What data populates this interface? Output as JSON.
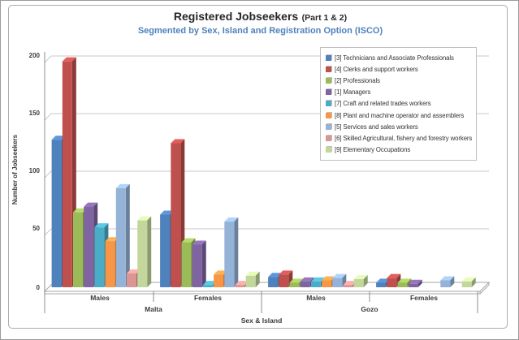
{
  "header": {
    "title_main": "Registered Jobseekers",
    "title_suffix": "(Part 1 & 2)",
    "subtitle": "Segmented by Sex, Island and Registration Option (ISCO)",
    "subtitle_color": "#4F81BD"
  },
  "chart_data": {
    "type": "bar",
    "view": "3d-clustered",
    "title": "Registered Jobseekers (Part 1 & 2)",
    "subtitle": "Segmented by Sex, Island and Registration Option (ISCO)",
    "xlabel": "Sex & Island",
    "ylabel": "Number of Jobseekers",
    "ylim": [
      0,
      200
    ],
    "yticks": [
      0,
      50,
      100,
      150,
      200
    ],
    "grid": true,
    "legend_position": "top-right",
    "categories": [
      "Males",
      "Females",
      "Males",
      "Females"
    ],
    "category_groups": [
      {
        "label": "Malta",
        "span": 2
      },
      {
        "label": "Gozo",
        "span": 2
      }
    ],
    "series": [
      {
        "name": "[3] Technicians and Associate Professionals",
        "color": "#4F81BD",
        "values": [
          128,
          63,
          9,
          4
        ]
      },
      {
        "name": "[4] Clerks and support workers",
        "color": "#C0504D",
        "values": [
          196,
          125,
          11,
          8
        ]
      },
      {
        "name": "[2] Professionals",
        "color": "#9BBB59",
        "values": [
          65,
          39,
          4,
          4
        ]
      },
      {
        "name": "[1] Managers",
        "color": "#8064A2",
        "values": [
          70,
          37,
          5,
          3
        ]
      },
      {
        "name": "[7] Craft and related trades workers",
        "color": "#4BACC6",
        "values": [
          52,
          2,
          5,
          0
        ]
      },
      {
        "name": "[8] Plant and machine operator and assemblers",
        "color": "#F79646",
        "values": [
          40,
          11,
          6,
          0
        ]
      },
      {
        "name": "[5] Services and sales workers",
        "color": "#95B3D7",
        "values": [
          86,
          57,
          8,
          6
        ]
      },
      {
        "name": "[6] Skilled Agricultural, fishery and forestry workers",
        "color": "#D99694",
        "values": [
          12,
          2,
          2,
          0
        ]
      },
      {
        "name": "[9] Elementary Occupations",
        "color": "#C3D69B",
        "values": [
          58,
          10,
          7,
          5
        ]
      }
    ]
  }
}
